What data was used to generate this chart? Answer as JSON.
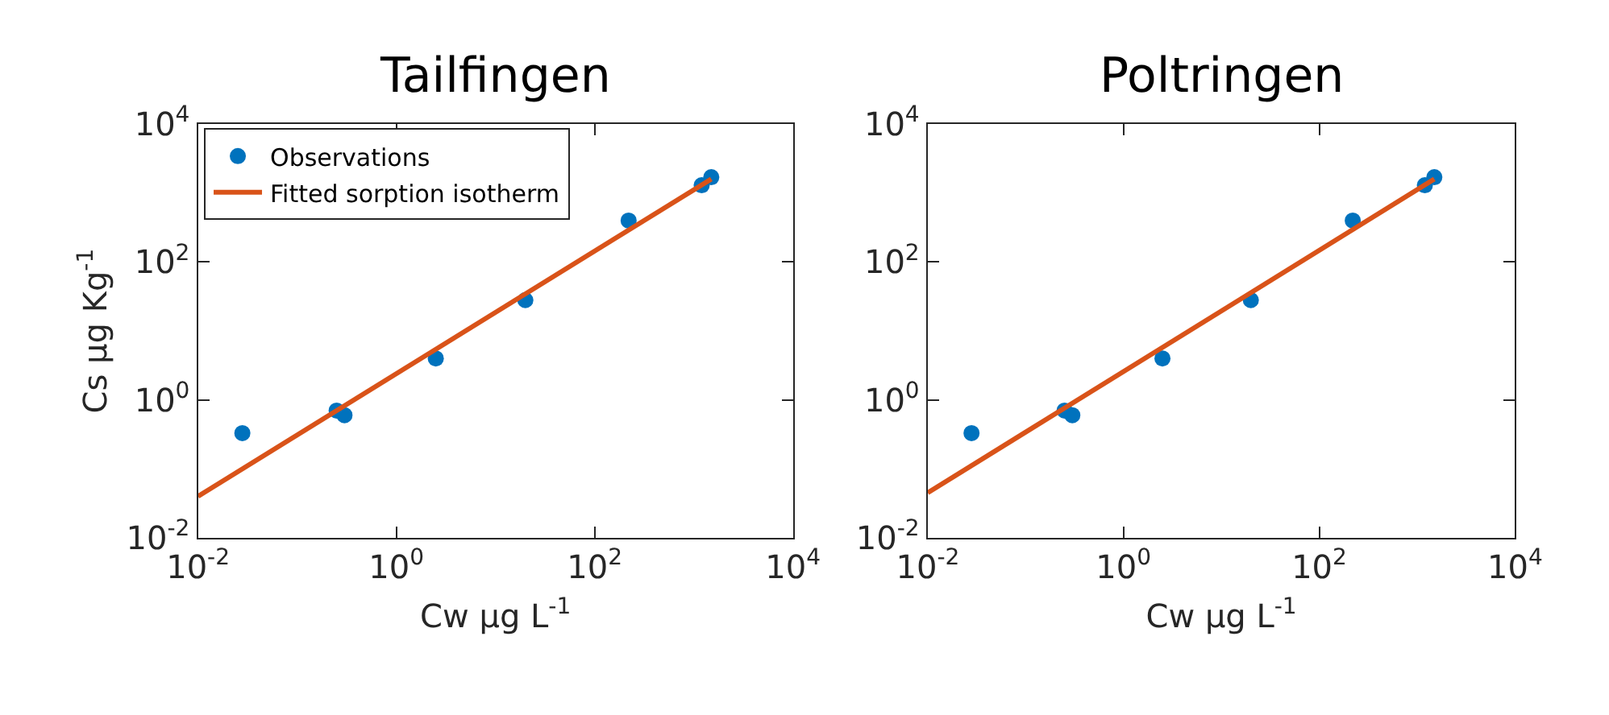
{
  "chart_data": [
    {
      "type": "scatter",
      "title": "Tailfingen",
      "xlabel": "Cw μg L$^{-1}$",
      "ylabel": "Cs μg Kg$^{-1}$",
      "log": "xy",
      "legend": "top left",
      "xlim": [
        0.01,
        10000
      ],
      "ylim": [
        0.01,
        10000
      ],
      "xticks": [
        {
          "value": 0.01,
          "label": "10$^{-2}$"
        },
        {
          "value": 1,
          "label": "10$^{0}$"
        },
        {
          "value": 100,
          "label": "10$^{2}$"
        },
        {
          "value": 10000,
          "label": "10$^{4}$"
        }
      ],
      "yticks": [
        {
          "value": 0.01,
          "label": "10$^{-2}$"
        },
        {
          "value": 1,
          "label": "10$^{0}$"
        },
        {
          "value": 100,
          "label": "10$^{2}$"
        },
        {
          "value": 10000,
          "label": "10$^{4}$"
        }
      ],
      "series": [
        {
          "name": "Observations",
          "marker": "circle",
          "color": "#0072bd",
          "x": [
            0.028,
            0.25,
            0.3,
            2.5,
            20,
            220,
            1200,
            1500
          ],
          "values": [
            0.33,
            0.7,
            0.6,
            4,
            28,
            400,
            1300,
            1700
          ]
        },
        {
          "name": "Fitted sorption isotherm",
          "type": "line",
          "color": "#d95319",
          "x": [
            0.01,
            1500
          ],
          "values": [
            0.04,
            1600
          ]
        }
      ]
    },
    {
      "type": "scatter",
      "title": "Poltringen",
      "xlabel": "Cw μg L$^{-1}$",
      "log": "xy",
      "xlim": [
        0.01,
        10000
      ],
      "ylim": [
        0.01,
        10000
      ],
      "xticks": [
        {
          "value": 0.01,
          "label": "10$^{-2}$"
        },
        {
          "value": 1,
          "label": "10$^{0}$"
        },
        {
          "value": 100,
          "label": "10$^{2}$"
        },
        {
          "value": 10000,
          "label": "10$^{4}$"
        }
      ],
      "yticks": [
        {
          "value": 0.01,
          "label": "10$^{-2}$"
        },
        {
          "value": 1,
          "label": "10$^{0}$"
        },
        {
          "value": 100,
          "label": "10$^{2}$"
        },
        {
          "value": 10000,
          "label": "10$^{4}$"
        }
      ],
      "series": [
        {
          "marker": "circle",
          "color": "#0072bd",
          "x": [
            0.028,
            0.25,
            0.3,
            2.5,
            20,
            220,
            1200,
            1500
          ],
          "values": [
            0.33,
            0.7,
            0.6,
            4,
            28,
            400,
            1300,
            1700
          ]
        },
        {
          "type": "line",
          "color": "#d95319",
          "x": [
            0.01,
            1500
          ],
          "values": [
            0.045,
            1600
          ]
        }
      ]
    }
  ]
}
